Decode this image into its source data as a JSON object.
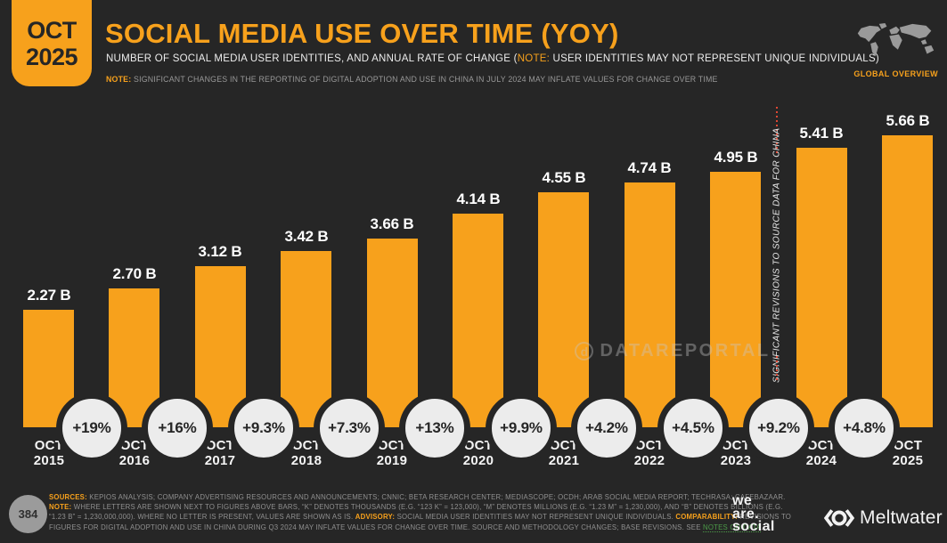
{
  "slide": {
    "badge": {
      "month": "OCT",
      "year": "2025"
    },
    "header": {
      "title": "SOCIAL MEDIA USE OVER TIME (YOY)",
      "subtitle_segments": [
        {
          "t": "NUMBER OF SOCIAL MEDIA USER IDENTITIES, AND ANNUAL RATE OF CHANGE (",
          "c": ""
        },
        {
          "t": "NOTE:",
          "c": "on"
        },
        {
          "t": " USER IDENTITIES MAY NOT REPRESENT UNIQUE INDIVIDUALS)",
          "c": ""
        }
      ],
      "note_segments": [
        {
          "t": "NOTE:",
          "c": "o"
        },
        {
          "t": " SIGNIFICANT CHANGES IN THE REPORTING OF DIGITAL ADOPTION AND USE IN CHINA IN JULY 2024 MAY INFLATE VALUES FOR CHANGE OVER TIME",
          "c": ""
        }
      ],
      "global_overview": "GLOBAL OVERVIEW"
    },
    "china_note": "SIGNIFICANT REVISIONS TO SOURCE DATA FOR CHINA",
    "watermark": "DATAREPORTAL",
    "footer": {
      "page": "384",
      "lines": [
        [
          {
            "t": "SOURCES:",
            "c": "o"
          },
          {
            "t": " KEPIOS ANALYSIS; COMPANY ADVERTISING RESOURCES AND ANNOUNCEMENTS; CNNIC; BETA RESEARCH CENTER; MEDIASCOPE; OCDH; ARAB SOCIAL MEDIA REPORT; TECHRASA; CAFEBAZAAR.",
            "c": ""
          }
        ],
        [
          {
            "t": "NOTE:",
            "c": "o"
          },
          {
            "t": " WHERE LETTERS ARE SHOWN NEXT TO FIGURES ABOVE BARS, “K” DENOTES THOUSANDS (E.G. “123 K” = 123,000), “M” DENOTES MILLIONS (E.G. “1.23 M” = 1,230,000), AND “B” DENOTES BILLIONS (E.G.",
            "c": ""
          }
        ],
        [
          {
            "t": "“1.23 B” = 1,230,000,000). WHERE NO LETTER IS PRESENT, VALUES ARE SHOWN AS IS. ",
            "c": ""
          },
          {
            "t": "ADVISORY:",
            "c": "o"
          },
          {
            "t": " SOCIAL MEDIA USER IDENTITIES MAY NOT REPRESENT UNIQUE INDIVIDUALS. ",
            "c": ""
          },
          {
            "t": "COMPARABILITY:",
            "c": "o"
          },
          {
            "t": " REVISIONS TO",
            "c": ""
          }
        ],
        [
          {
            "t": "FIGURES FOR DIGITAL ADOPTION AND USE IN CHINA DURING Q3 2024 MAY INFLATE VALUES FOR CHANGE OVER TIME. SOURCE AND METHODOLOGY CHANGES; BASE REVISIONS. SEE ",
            "c": ""
          },
          {
            "t": "NOTES ON DATA",
            "c": "g"
          },
          {
            "t": ".",
            "c": ""
          }
        ]
      ],
      "we_are_social": [
        "we",
        "are.",
        "social"
      ],
      "meltwater": "Meltwater"
    },
    "colors": {
      "background": "#262626",
      "accent_orange": "#F7A11C",
      "bubble_fill": "#ECECEC",
      "red_dotted_line": "#DE4733",
      "green_link": "#4C9B48",
      "footer_gray": "#909090",
      "map_gray": "#9A9A9A",
      "white_text": "#F2F2F2"
    }
  },
  "chart_data": {
    "type": "bar",
    "title": "SOCIAL MEDIA USE OVER TIME (YOY)",
    "ylabel": "SOCIAL MEDIA USER IDENTITIES",
    "categories": [
      "OCT 2015",
      "OCT 2016",
      "OCT 2017",
      "OCT 2018",
      "OCT 2019",
      "OCT 2020",
      "OCT 2021",
      "OCT 2022",
      "OCT 2023",
      "OCT 2024",
      "OCT 2025"
    ],
    "values_billions": [
      2.27,
      2.7,
      3.12,
      3.42,
      3.66,
      4.14,
      4.55,
      4.74,
      4.95,
      5.41,
      5.66
    ],
    "bar_labels": [
      "2.27 B",
      "2.70 B",
      "3.12 B",
      "3.42 B",
      "3.66 B",
      "4.14 B",
      "4.55 B",
      "4.74 B",
      "4.95 B",
      "5.41 B",
      "5.66 B"
    ],
    "yoy_change_labels": [
      "+19%",
      "+16%",
      "+9.3%",
      "+7.3%",
      "+13%",
      "+9.9%",
      "+4.2%",
      "+4.5%",
      "+9.2%",
      "+4.8%"
    ],
    "ylim": [
      0,
      5.66
    ],
    "grid": false,
    "legend": false,
    "bar_color": "#F7A11C",
    "annotation": "SIGNIFICANT REVISIONS TO SOURCE DATA FOR CHINA"
  }
}
